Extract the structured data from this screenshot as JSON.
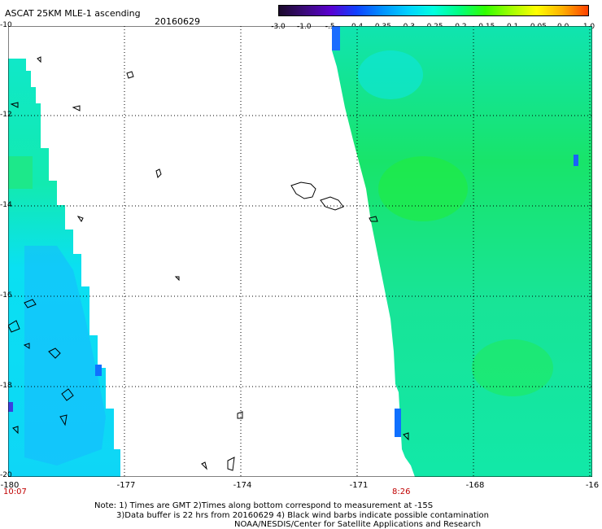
{
  "header": {
    "title": "ASCAT 25KM MLE-1 ascending",
    "date": "20160629"
  },
  "colorbar": {
    "labels": [
      "-3.0",
      "-1.0",
      "-.5",
      "-0.4",
      "-0.35",
      "-0.3",
      "-0.25",
      "-0.2",
      "-0.15",
      "-0.1",
      "-0.05",
      "0.0",
      "1.0"
    ],
    "colors": [
      "#1a0a2a",
      "#3b0a7a",
      "#5a00d0",
      "#1040ff",
      "#0090ff",
      "#00d0ff",
      "#00ffe0",
      "#00ff80",
      "#30ff00",
      "#a0ff00",
      "#ffff00",
      "#ffb000",
      "#ff4000"
    ]
  },
  "map": {
    "y_axis": [
      "-10",
      "-12",
      "-14",
      "-16",
      "-18",
      "-20"
    ],
    "x_axis": [
      "-180",
      "-177",
      "-174",
      "-171",
      "-168",
      "-16"
    ],
    "swath_times": [
      "10:07",
      "8:26"
    ],
    "colors": {
      "swath_cyan": "#0df2f2",
      "swath_green": "#1de88a",
      "swath_blue": "#1aa6ff",
      "deep_green": "#14e04a"
    }
  },
  "notes": {
    "line1": "Note: 1) Times are GMT 2)Times along bottom correspond to measurement at -15S",
    "line2": "3)Data buffer is 22 hrs from 20160629 4) Black wind barbs indicate possible contamination",
    "line3": "NOAA/NESDIS/Center for Satellite Applications and Research"
  }
}
